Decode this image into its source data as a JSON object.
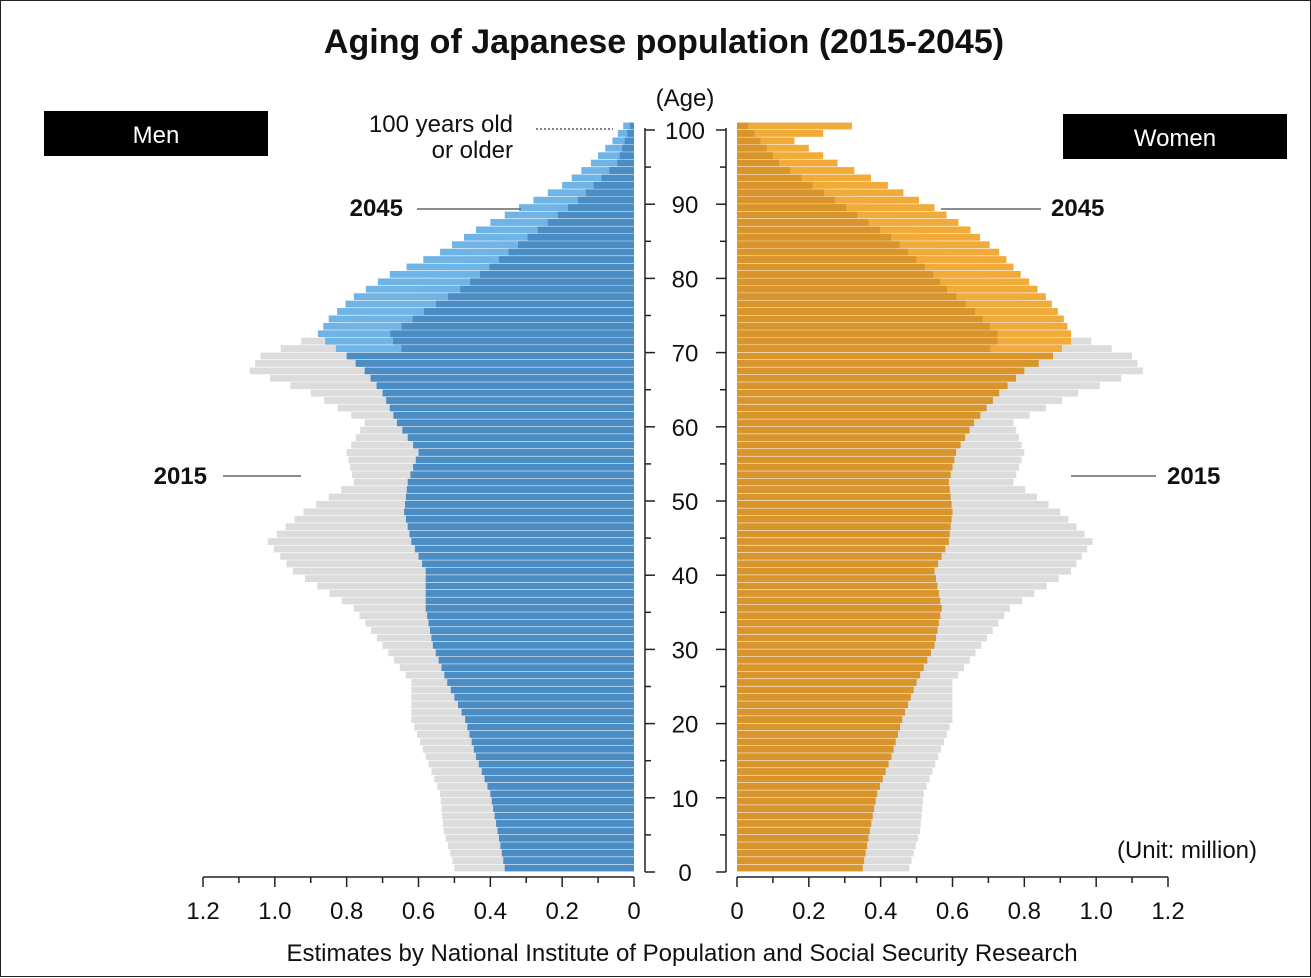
{
  "chart_data": {
    "type": "bar",
    "subtype": "population-pyramid",
    "title": "Aging of Japanese population (2015-2045)",
    "y_axis_label": "(Age)",
    "unit_label": "(Unit: million)",
    "source": "Estimates by National Institute of Population and Social Security Research",
    "left_panel_label": "Men",
    "right_panel_label": "Women",
    "top_age_label_line1": "100 years old",
    "top_age_label_line2": "or older",
    "age_ticks": [
      0,
      10,
      20,
      30,
      40,
      50,
      60,
      70,
      80,
      90,
      100
    ],
    "age_tick_labels": [
      "0",
      "10",
      "20",
      "30",
      "40",
      "50",
      "60",
      "70",
      "80",
      "90",
      "100"
    ],
    "x_ticks_men": [
      "1.2",
      "1.0",
      "0.8",
      "0.6",
      "0.4",
      "0.2",
      "0"
    ],
    "x_ticks_women": [
      "0",
      "0.2",
      "0.4",
      "0.6",
      "0.8",
      "1.0",
      "1.2"
    ],
    "xlim": [
      0,
      1.2
    ],
    "colors": {
      "men_2045": "#4a8cc4",
      "men_2045_highlight": "#6fb4e6",
      "women_2045": "#d9952c",
      "women_2045_highlight": "#f2aa38",
      "pop_2015": "#dcdcdc",
      "label_box": "#000000"
    },
    "series": [
      {
        "name": "2015",
        "ages": [
          0,
          5,
          10,
          15,
          20,
          25,
          30,
          35,
          40,
          44,
          48,
          52,
          56,
          60,
          64,
          67,
          69,
          72,
          75,
          78,
          80,
          85,
          90,
          95,
          100
        ],
        "men": [
          0.5,
          0.53,
          0.54,
          0.58,
          0.62,
          0.62,
          0.7,
          0.78,
          0.95,
          1.02,
          0.92,
          0.78,
          0.8,
          0.75,
          0.9,
          1.07,
          1.04,
          0.87,
          0.75,
          0.62,
          0.55,
          0.38,
          0.2,
          0.06,
          0.015
        ],
        "women": [
          0.48,
          0.51,
          0.52,
          0.56,
          0.6,
          0.6,
          0.68,
          0.76,
          0.93,
          0.99,
          0.9,
          0.77,
          0.8,
          0.77,
          0.95,
          1.13,
          1.1,
          0.93,
          0.85,
          0.75,
          0.7,
          0.55,
          0.35,
          0.15,
          0.04
        ]
      },
      {
        "name": "2045",
        "ages": [
          0,
          5,
          10,
          15,
          20,
          25,
          30,
          35,
          40,
          44,
          48,
          52,
          56,
          60,
          64,
          67,
          69,
          71,
          72,
          74,
          77,
          80,
          83,
          86,
          89,
          92,
          95,
          98,
          100
        ],
        "men": [
          0.36,
          0.38,
          0.4,
          0.44,
          0.47,
          0.52,
          0.56,
          0.58,
          0.58,
          0.62,
          0.64,
          0.63,
          0.6,
          0.66,
          0.7,
          0.75,
          0.8,
          0.86,
          0.88,
          0.85,
          0.78,
          0.68,
          0.54,
          0.44,
          0.32,
          0.2,
          0.12,
          0.06,
          0.03
        ],
        "women": [
          0.35,
          0.37,
          0.39,
          0.43,
          0.46,
          0.5,
          0.55,
          0.57,
          0.55,
          0.59,
          0.6,
          0.59,
          0.61,
          0.66,
          0.73,
          0.8,
          0.88,
          0.93,
          0.93,
          0.91,
          0.86,
          0.79,
          0.73,
          0.65,
          0.55,
          0.42,
          0.28,
          0.16,
          0.32
        ]
      }
    ],
    "year_labels": [
      "2045",
      "2015"
    ]
  }
}
